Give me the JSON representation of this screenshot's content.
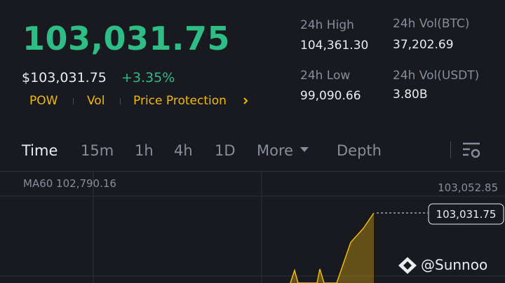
{
  "header": {
    "price": "103,031.75",
    "fiat_price": "$103,031.75",
    "change": "+3.35%",
    "tags": [
      "POW",
      "Vol",
      "Price Protection"
    ]
  },
  "stats": [
    {
      "label": "24h High",
      "value": "104,361.30"
    },
    {
      "label": "24h Vol(BTC)",
      "value": "37,202.69"
    },
    {
      "label": "24h Low",
      "value": "99,090.66"
    },
    {
      "label": "24h Vol(USDT)",
      "value": "3.80B"
    }
  ],
  "tabs": [
    "Time",
    "15m",
    "1h",
    "4h",
    "1D",
    "More",
    "Depth"
  ],
  "chart": {
    "indicator": "MA60 102,790.16",
    "high_label": "103,052.85",
    "last_price": "103,031.75"
  },
  "watermark": "@Sunnoo"
}
